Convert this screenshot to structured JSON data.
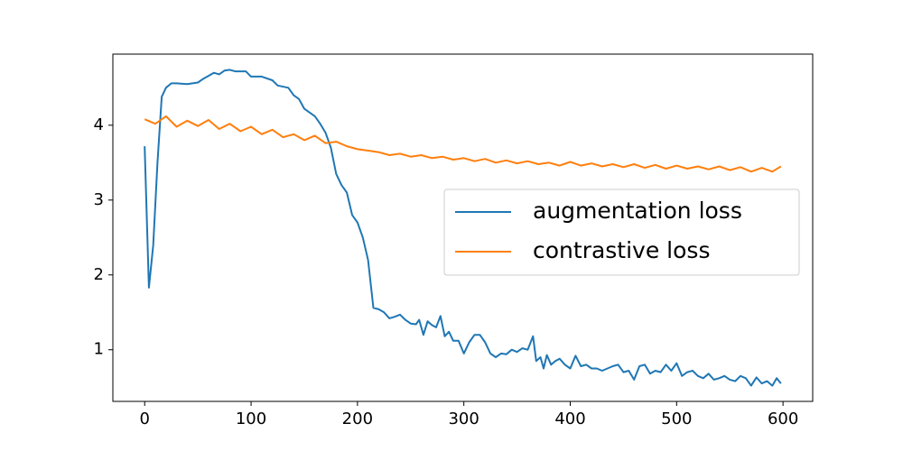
{
  "chart_data": {
    "type": "line",
    "xlim": [
      -29.9,
      627.9
    ],
    "xticks": [
      0,
      100,
      200,
      300,
      400,
      500,
      600
    ],
    "ylim": [
      0.31,
      4.95
    ],
    "yticks": [
      1,
      2,
      3,
      4
    ],
    "grid": false,
    "legend": "center right",
    "series": [
      {
        "name": "augmentation loss",
        "color": "#1f77b4",
        "x": [
          0,
          4,
          8,
          12,
          16,
          20,
          25,
          30,
          40,
          50,
          55,
          60,
          65,
          70,
          75,
          80,
          85,
          95,
          100,
          110,
          120,
          125,
          135,
          140,
          145,
          150,
          160,
          165,
          170,
          175,
          180,
          185,
          190,
          195,
          200,
          205,
          210,
          215,
          220,
          225,
          230,
          235,
          240,
          245,
          250,
          255,
          258,
          262,
          266,
          270,
          274,
          278,
          282,
          286,
          290,
          295,
          300,
          305,
          310,
          315,
          320,
          325,
          330,
          335,
          340,
          345,
          350,
          355,
          360,
          365,
          368,
          372,
          375,
          378,
          382,
          386,
          390,
          395,
          400,
          405,
          410,
          415,
          420,
          425,
          430,
          435,
          440,
          445,
          450,
          455,
          460,
          465,
          470,
          475,
          480,
          485,
          490,
          495,
          500,
          505,
          510,
          515,
          520,
          525,
          530,
          535,
          540,
          545,
          550,
          555,
          560,
          565,
          570,
          575,
          580,
          585,
          590,
          594,
          598
        ],
        "values": [
          3.72,
          1.83,
          2.4,
          3.5,
          4.38,
          4.5,
          4.56,
          4.56,
          4.55,
          4.57,
          4.62,
          4.66,
          4.7,
          4.68,
          4.73,
          4.74,
          4.72,
          4.72,
          4.65,
          4.65,
          4.6,
          4.53,
          4.5,
          4.4,
          4.35,
          4.22,
          4.12,
          4.02,
          3.9,
          3.7,
          3.35,
          3.2,
          3.1,
          2.8,
          2.7,
          2.5,
          2.2,
          1.56,
          1.54,
          1.5,
          1.42,
          1.44,
          1.47,
          1.4,
          1.35,
          1.34,
          1.4,
          1.2,
          1.38,
          1.33,
          1.3,
          1.45,
          1.18,
          1.24,
          1.12,
          1.12,
          0.95,
          1.1,
          1.2,
          1.2,
          1.1,
          0.95,
          0.9,
          0.95,
          0.94,
          1.0,
          0.97,
          1.02,
          1.0,
          1.18,
          0.85,
          0.9,
          0.75,
          0.93,
          0.8,
          0.85,
          0.88,
          0.8,
          0.75,
          0.92,
          0.78,
          0.8,
          0.75,
          0.75,
          0.72,
          0.75,
          0.78,
          0.8,
          0.7,
          0.72,
          0.6,
          0.78,
          0.8,
          0.68,
          0.72,
          0.7,
          0.8,
          0.72,
          0.82,
          0.65,
          0.7,
          0.72,
          0.65,
          0.62,
          0.68,
          0.6,
          0.62,
          0.65,
          0.6,
          0.58,
          0.65,
          0.62,
          0.52,
          0.63,
          0.55,
          0.58,
          0.52,
          0.62,
          0.55
        ]
      },
      {
        "name": "contrastive loss",
        "color": "#ff7f0e",
        "x": [
          0,
          10,
          20,
          30,
          40,
          50,
          60,
          70,
          80,
          90,
          100,
          110,
          120,
          130,
          140,
          150,
          160,
          170,
          180,
          190,
          200,
          210,
          220,
          230,
          240,
          250,
          260,
          270,
          280,
          290,
          300,
          310,
          320,
          330,
          340,
          350,
          360,
          370,
          380,
          390,
          400,
          410,
          420,
          430,
          440,
          450,
          460,
          470,
          480,
          490,
          500,
          510,
          520,
          530,
          540,
          550,
          560,
          570,
          580,
          590,
          598
        ],
        "values": [
          4.08,
          4.02,
          4.12,
          3.98,
          4.06,
          3.99,
          4.07,
          3.95,
          4.02,
          3.92,
          3.98,
          3.88,
          3.94,
          3.84,
          3.88,
          3.8,
          3.86,
          3.76,
          3.78,
          3.72,
          3.68,
          3.66,
          3.64,
          3.6,
          3.62,
          3.58,
          3.6,
          3.56,
          3.58,
          3.54,
          3.56,
          3.52,
          3.55,
          3.5,
          3.53,
          3.49,
          3.52,
          3.48,
          3.5,
          3.46,
          3.51,
          3.46,
          3.49,
          3.45,
          3.48,
          3.44,
          3.48,
          3.43,
          3.47,
          3.42,
          3.46,
          3.42,
          3.45,
          3.41,
          3.45,
          3.4,
          3.44,
          3.38,
          3.43,
          3.38,
          3.45
        ]
      }
    ]
  }
}
